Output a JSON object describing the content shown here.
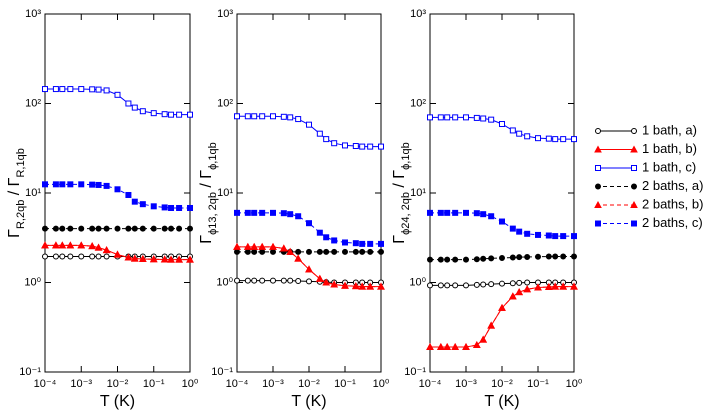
{
  "chart_data": [
    {
      "type": "line",
      "xlabel": "T (K)",
      "ylabel": [
        "Γ",
        "R,2qb",
        " / Γ",
        "R,1qb"
      ],
      "log_x": true,
      "log_y": true,
      "x": [
        0.0001,
        0.0002,
        0.0003,
        0.0005,
        0.001,
        0.002,
        0.003,
        0.005,
        0.01,
        0.02,
        0.03,
        0.05,
        0.1,
        0.2,
        0.3,
        0.5,
        1
      ],
      "xlim": [
        0.0001,
        1
      ],
      "ylim": [
        0.1,
        1000
      ],
      "xticks": [
        {
          "value": 0.0001,
          "label": "10⁻⁴"
        },
        {
          "value": 0.001,
          "label": "10⁻³"
        },
        {
          "value": 0.01,
          "label": "10⁻²"
        },
        {
          "value": 0.1,
          "label": "10⁻¹"
        },
        {
          "value": 1,
          "label": "10⁰"
        }
      ],
      "yticks": [
        {
          "value": 0.1,
          "label": "10⁻¹"
        },
        {
          "value": 1,
          "label": "10⁰"
        },
        {
          "value": 10,
          "label": "10¹"
        },
        {
          "value": 100,
          "label": "10²"
        },
        {
          "value": 1000,
          "label": "10³"
        }
      ],
      "series": [
        {
          "name": "1 bath, a)",
          "color": "#000000",
          "marker": "circle",
          "filled": false,
          "dashed": false,
          "values": [
            1.95,
            1.95,
            1.95,
            1.95,
            1.95,
            1.95,
            1.95,
            1.95,
            1.95,
            1.95,
            1.95,
            1.95,
            1.95,
            1.95,
            1.95,
            1.95,
            1.95
          ]
        },
        {
          "name": "1 bath, b)",
          "color": "#ff0000",
          "marker": "triangle",
          "filled": true,
          "dashed": false,
          "values": [
            2.6,
            2.6,
            2.6,
            2.6,
            2.6,
            2.55,
            2.45,
            2.3,
            2.05,
            1.9,
            1.85,
            1.83,
            1.82,
            1.81,
            1.8,
            1.8,
            1.8
          ]
        },
        {
          "name": "1 bath, c)",
          "color": "#0000ff",
          "marker": "square",
          "filled": false,
          "dashed": false,
          "values": [
            145,
            145,
            145,
            145,
            145,
            144,
            143,
            140,
            125,
            100,
            90,
            82,
            78,
            76,
            75,
            75,
            75
          ]
        },
        {
          "name": "2 baths, a)",
          "color": "#000000",
          "marker": "circle",
          "filled": true,
          "dashed": true,
          "values": [
            4,
            4,
            4,
            4,
            4,
            4,
            4,
            4,
            4,
            4,
            4,
            4,
            4,
            4,
            4,
            4,
            4
          ]
        },
        {
          "name": "2 baths, b)",
          "color": "#ff0000",
          "marker": "triangle",
          "filled": true,
          "dashed": true,
          "values": [
            2.6,
            2.6,
            2.6,
            2.6,
            2.6,
            2.55,
            2.45,
            2.3,
            2.05,
            1.9,
            1.85,
            1.83,
            1.82,
            1.81,
            1.8,
            1.8,
            1.8
          ]
        },
        {
          "name": "2 baths, c)",
          "color": "#0000ff",
          "marker": "square",
          "filled": true,
          "dashed": true,
          "values": [
            12.5,
            12.5,
            12.5,
            12.5,
            12.5,
            12.4,
            12.3,
            12,
            11,
            9.5,
            8,
            7.5,
            7.1,
            6.9,
            6.8,
            6.8,
            6.8
          ]
        }
      ]
    },
    {
      "type": "line",
      "xlabel": "T (K)",
      "ylabel": [
        "Γ",
        "ϕ13, 2qb",
        " / Γ",
        "ϕ,1qb"
      ],
      "log_x": true,
      "log_y": true,
      "x": [
        0.0001,
        0.0002,
        0.0003,
        0.0005,
        0.001,
        0.002,
        0.003,
        0.005,
        0.01,
        0.02,
        0.03,
        0.05,
        0.1,
        0.2,
        0.3,
        0.5,
        1
      ],
      "xlim": [
        0.0001,
        1
      ],
      "ylim": [
        0.1,
        1000
      ],
      "xticks": [
        {
          "value": 0.0001,
          "label": "10⁻⁴"
        },
        {
          "value": 0.001,
          "label": "10⁻³"
        },
        {
          "value": 0.01,
          "label": "10⁻²"
        },
        {
          "value": 0.1,
          "label": "10⁻¹"
        },
        {
          "value": 1,
          "label": "10⁰"
        }
      ],
      "yticks": [
        {
          "value": 0.1,
          "label": "10⁻¹"
        },
        {
          "value": 1,
          "label": "10⁰"
        },
        {
          "value": 10,
          "label": "10¹"
        },
        {
          "value": 100,
          "label": "10²"
        },
        {
          "value": 1000,
          "label": "10³"
        }
      ],
      "series": [
        {
          "color": "#000000",
          "marker": "circle",
          "filled": false,
          "dashed": false,
          "values": [
            1.05,
            1.05,
            1.05,
            1.05,
            1.05,
            1.05,
            1.05,
            1.04,
            1.03,
            1.02,
            1.01,
            1.0,
            1.0,
            1.0,
            1.0,
            1.0,
            1.0
          ]
        },
        {
          "color": "#ff0000",
          "marker": "triangle",
          "filled": true,
          "dashed": false,
          "values": [
            2.5,
            2.5,
            2.5,
            2.5,
            2.5,
            2.4,
            2.2,
            1.85,
            1.4,
            1.1,
            1.0,
            0.95,
            0.92,
            0.91,
            0.9,
            0.9,
            0.9
          ]
        },
        {
          "color": "#0000ff",
          "marker": "square",
          "filled": false,
          "dashed": false,
          "values": [
            72,
            72,
            72,
            72,
            72,
            71,
            70,
            67,
            58,
            46,
            40,
            36,
            34,
            33.5,
            33,
            33,
            33
          ]
        },
        {
          "color": "#000000",
          "marker": "circle",
          "filled": true,
          "dashed": true,
          "values": [
            2.2,
            2.2,
            2.2,
            2.2,
            2.2,
            2.2,
            2.2,
            2.2,
            2.2,
            2.2,
            2.2,
            2.2,
            2.2,
            2.2,
            2.2,
            2.2,
            2.2
          ]
        },
        {
          "color": "#ff0000",
          "marker": "triangle",
          "filled": true,
          "dashed": true,
          "values": [
            2.5,
            2.5,
            2.5,
            2.5,
            2.5,
            2.4,
            2.2,
            1.85,
            1.4,
            1.1,
            1.0,
            0.95,
            0.92,
            0.91,
            0.9,
            0.9,
            0.9
          ]
        },
        {
          "color": "#0000ff",
          "marker": "square",
          "filled": true,
          "dashed": true,
          "values": [
            6,
            6,
            6,
            6,
            6,
            5.95,
            5.8,
            5.5,
            4.6,
            3.6,
            3.2,
            2.95,
            2.8,
            2.75,
            2.7,
            2.7,
            2.7
          ]
        }
      ]
    },
    {
      "type": "line",
      "xlabel": "T (K)",
      "ylabel": [
        "Γ",
        "ϕ24, 2qb",
        " / Γ",
        "ϕ,1qb"
      ],
      "log_x": true,
      "log_y": true,
      "x": [
        0.0001,
        0.0002,
        0.0003,
        0.0005,
        0.001,
        0.002,
        0.003,
        0.005,
        0.01,
        0.02,
        0.03,
        0.05,
        0.1,
        0.2,
        0.3,
        0.5,
        1
      ],
      "xlim": [
        0.0001,
        1
      ],
      "ylim": [
        0.1,
        1000
      ],
      "xticks": [
        {
          "value": 0.0001,
          "label": "10⁻⁴"
        },
        {
          "value": 0.001,
          "label": "10⁻³"
        },
        {
          "value": 0.01,
          "label": "10⁻²"
        },
        {
          "value": 0.1,
          "label": "10⁻¹"
        },
        {
          "value": 1,
          "label": "10⁰"
        }
      ],
      "yticks": [
        {
          "value": 0.1,
          "label": "10⁻¹"
        },
        {
          "value": 1,
          "label": "10⁰"
        },
        {
          "value": 10,
          "label": "10¹"
        },
        {
          "value": 100,
          "label": "10²"
        },
        {
          "value": 1000,
          "label": "10³"
        }
      ],
      "series": [
        {
          "color": "#000000",
          "marker": "circle",
          "filled": false,
          "dashed": false,
          "values": [
            0.93,
            0.93,
            0.93,
            0.93,
            0.93,
            0.94,
            0.95,
            0.96,
            0.97,
            0.98,
            0.99,
            1.0,
            1.0,
            1.0,
            1.0,
            1.0,
            1.0
          ]
        },
        {
          "color": "#ff0000",
          "marker": "triangle",
          "filled": true,
          "dashed": false,
          "values": [
            0.19,
            0.19,
            0.19,
            0.19,
            0.19,
            0.2,
            0.23,
            0.33,
            0.52,
            0.7,
            0.78,
            0.84,
            0.88,
            0.89,
            0.9,
            0.9,
            0.9
          ]
        },
        {
          "color": "#0000ff",
          "marker": "square",
          "filled": false,
          "dashed": false,
          "values": [
            70,
            70,
            70,
            70,
            70,
            69,
            68,
            66,
            59,
            50,
            46,
            43,
            41,
            40.5,
            40,
            40,
            40
          ]
        },
        {
          "color": "#000000",
          "marker": "circle",
          "filled": true,
          "dashed": true,
          "values": [
            1.8,
            1.8,
            1.8,
            1.8,
            1.8,
            1.82,
            1.84,
            1.86,
            1.88,
            1.9,
            1.92,
            1.93,
            1.94,
            1.95,
            1.95,
            1.95,
            1.95
          ]
        },
        {
          "color": "#ff0000",
          "marker": "triangle",
          "filled": true,
          "dashed": true,
          "values": [
            0.19,
            0.19,
            0.19,
            0.19,
            0.19,
            0.2,
            0.23,
            0.33,
            0.52,
            0.7,
            0.78,
            0.84,
            0.88,
            0.89,
            0.9,
            0.9,
            0.9
          ]
        },
        {
          "color": "#0000ff",
          "marker": "square",
          "filled": true,
          "dashed": true,
          "values": [
            6,
            6,
            6,
            6,
            6,
            5.95,
            5.8,
            5.5,
            4.8,
            4,
            3.7,
            3.5,
            3.4,
            3.35,
            3.3,
            3.3,
            3.3
          ]
        }
      ]
    }
  ]
}
